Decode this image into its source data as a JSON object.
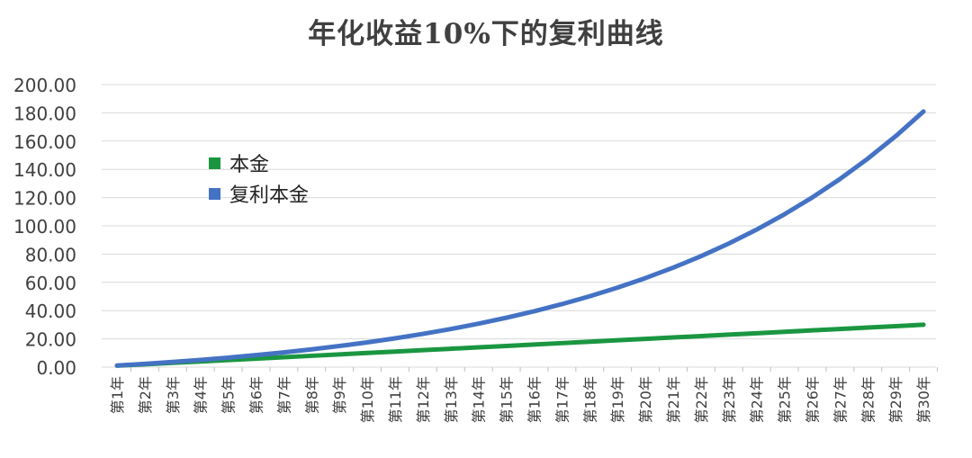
{
  "chart_data": {
    "type": "line",
    "title": "年化收益10%下的复利曲线",
    "categories": [
      "第1年",
      "第2年",
      "第3年",
      "第4年",
      "第5年",
      "第6年",
      "第7年",
      "第8年",
      "第9年",
      "第10年",
      "第11年",
      "第12年",
      "第13年",
      "第14年",
      "第15年",
      "第16年",
      "第17年",
      "第18年",
      "第19年",
      "第20年",
      "第21年",
      "第22年",
      "第23年",
      "第24年",
      "第25年",
      "第26年",
      "第27年",
      "第28年",
      "第29年",
      "第30年"
    ],
    "ylim": [
      0,
      200
    ],
    "yticks": [
      "0.00",
      "20.00",
      "40.00",
      "60.00",
      "80.00",
      "100.00",
      "120.00",
      "140.00",
      "160.00",
      "180.00",
      "200.00"
    ],
    "grid": true,
    "legend_position": "upper-left",
    "series": [
      {
        "name": "本金",
        "color": "#1a9641",
        "values": [
          1,
          2,
          3,
          4,
          5,
          6,
          7,
          8,
          9,
          10,
          11,
          12,
          13,
          14,
          15,
          16,
          17,
          18,
          19,
          20,
          21,
          22,
          23,
          24,
          25,
          26,
          27,
          28,
          29,
          30
        ]
      },
      {
        "name": "复利本金",
        "color": "#4472c4",
        "values": [
          1.1,
          2.31,
          3.64,
          5.11,
          6.72,
          8.49,
          10.44,
          12.58,
          14.94,
          17.53,
          20.38,
          23.52,
          26.97,
          30.77,
          34.95,
          39.54,
          44.6,
          50.16,
          56.28,
          63.0,
          70.4,
          78.54,
          87.5,
          97.35,
          108.18,
          120.1,
          133.21,
          147.63,
          163.49,
          180.94
        ]
      }
    ]
  }
}
